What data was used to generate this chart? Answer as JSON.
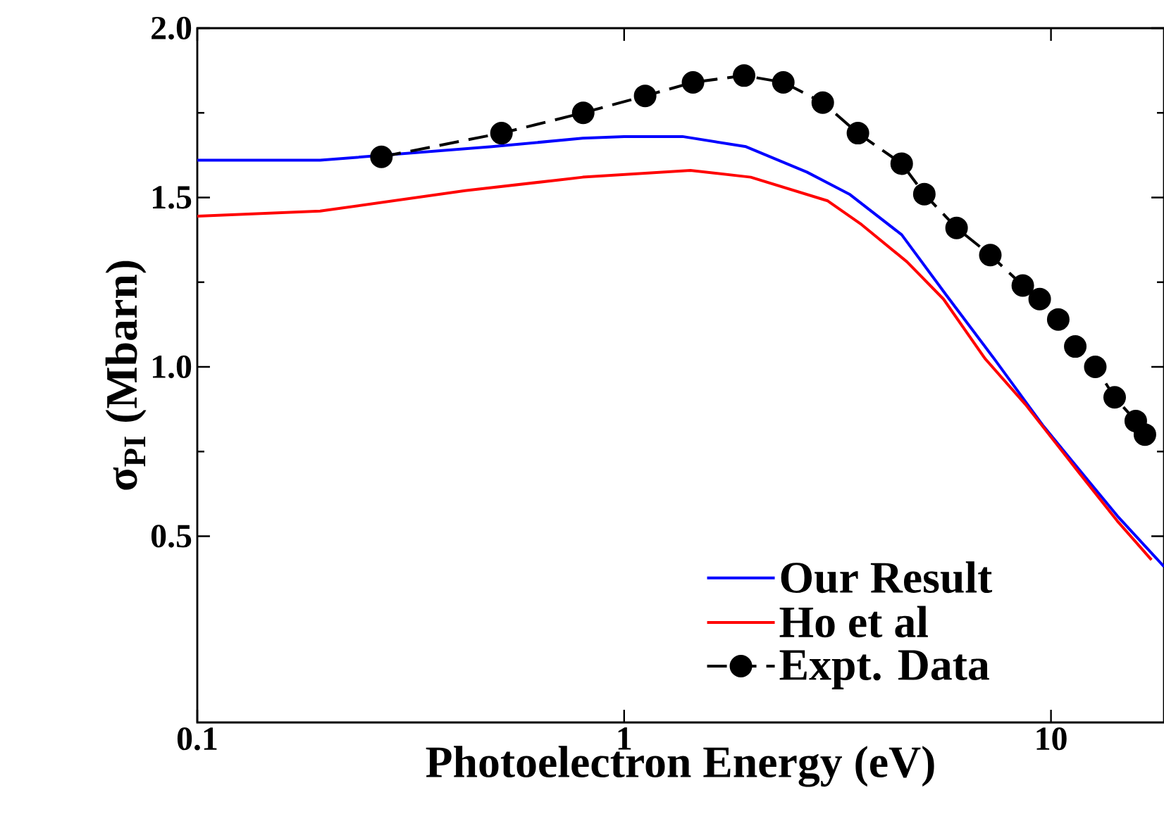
{
  "chart_data": {
    "type": "line",
    "xlabel": "Photoelectron Energy (eV)",
    "ylabel": "σ$_{PI}$ (Mbarn)",
    "log": "x",
    "xlim": [
      0.1,
      18.4
    ],
    "ylim": [
      -0.05,
      2.0
    ],
    "xticks": [
      0.1,
      1,
      10
    ],
    "yticks": [
      {
        "value": 0.5,
        "label": "0.5"
      },
      {
        "value": 1.0,
        "label": "1.0"
      },
      {
        "value": 1.5,
        "label": "1.5"
      },
      {
        "value": 2.0,
        "label": "2.0"
      }
    ],
    "grid": false,
    "legend": "bottom right",
    "series": [
      {
        "name": "Our Result",
        "color": "#0000ff",
        "marker": "none",
        "line_style": "solid",
        "x": [
          0.1,
          0.194,
          0.49,
          0.8,
          1.0,
          1.37,
          1.93,
          2.68,
          3.37,
          4.47,
          5.7,
          7.4,
          9.6,
          12.3,
          14.3,
          18.4
        ],
        "values": [
          1.61,
          1.61,
          1.65,
          1.675,
          1.68,
          1.68,
          1.65,
          1.575,
          1.51,
          1.39,
          1.21,
          1.02,
          0.825,
          0.66,
          0.56,
          0.41
        ]
      },
      {
        "name": "Ho et al",
        "color": "#ff0000",
        "marker": "none",
        "line_style": "solid",
        "x": [
          0.1,
          0.194,
          0.424,
          0.8,
          1.43,
          1.98,
          3.0,
          3.6,
          4.6,
          5.6,
          7.0,
          8.7,
          11.1,
          14.3,
          17.2
        ],
        "values": [
          1.445,
          1.46,
          1.52,
          1.56,
          1.58,
          1.56,
          1.49,
          1.42,
          1.31,
          1.2,
          1.025,
          0.89,
          0.72,
          0.545,
          0.43
        ]
      },
      {
        "name": "Expt. Data",
        "color": "#000000",
        "marker": "circle",
        "line_style": "dashed",
        "x": [
          0.27,
          0.516,
          0.802,
          1.12,
          1.45,
          1.91,
          2.36,
          2.92,
          3.53,
          4.47,
          5.05,
          6.01,
          7.21,
          8.59,
          9.41,
          10.4,
          11.4,
          12.7,
          14.1,
          15.8,
          16.6
        ],
        "values": [
          1.62,
          1.69,
          1.75,
          1.8,
          1.84,
          1.86,
          1.84,
          1.78,
          1.69,
          1.6,
          1.51,
          1.41,
          1.33,
          1.24,
          1.2,
          1.14,
          1.06,
          1.0,
          0.91,
          0.84,
          0.8
        ]
      }
    ]
  }
}
